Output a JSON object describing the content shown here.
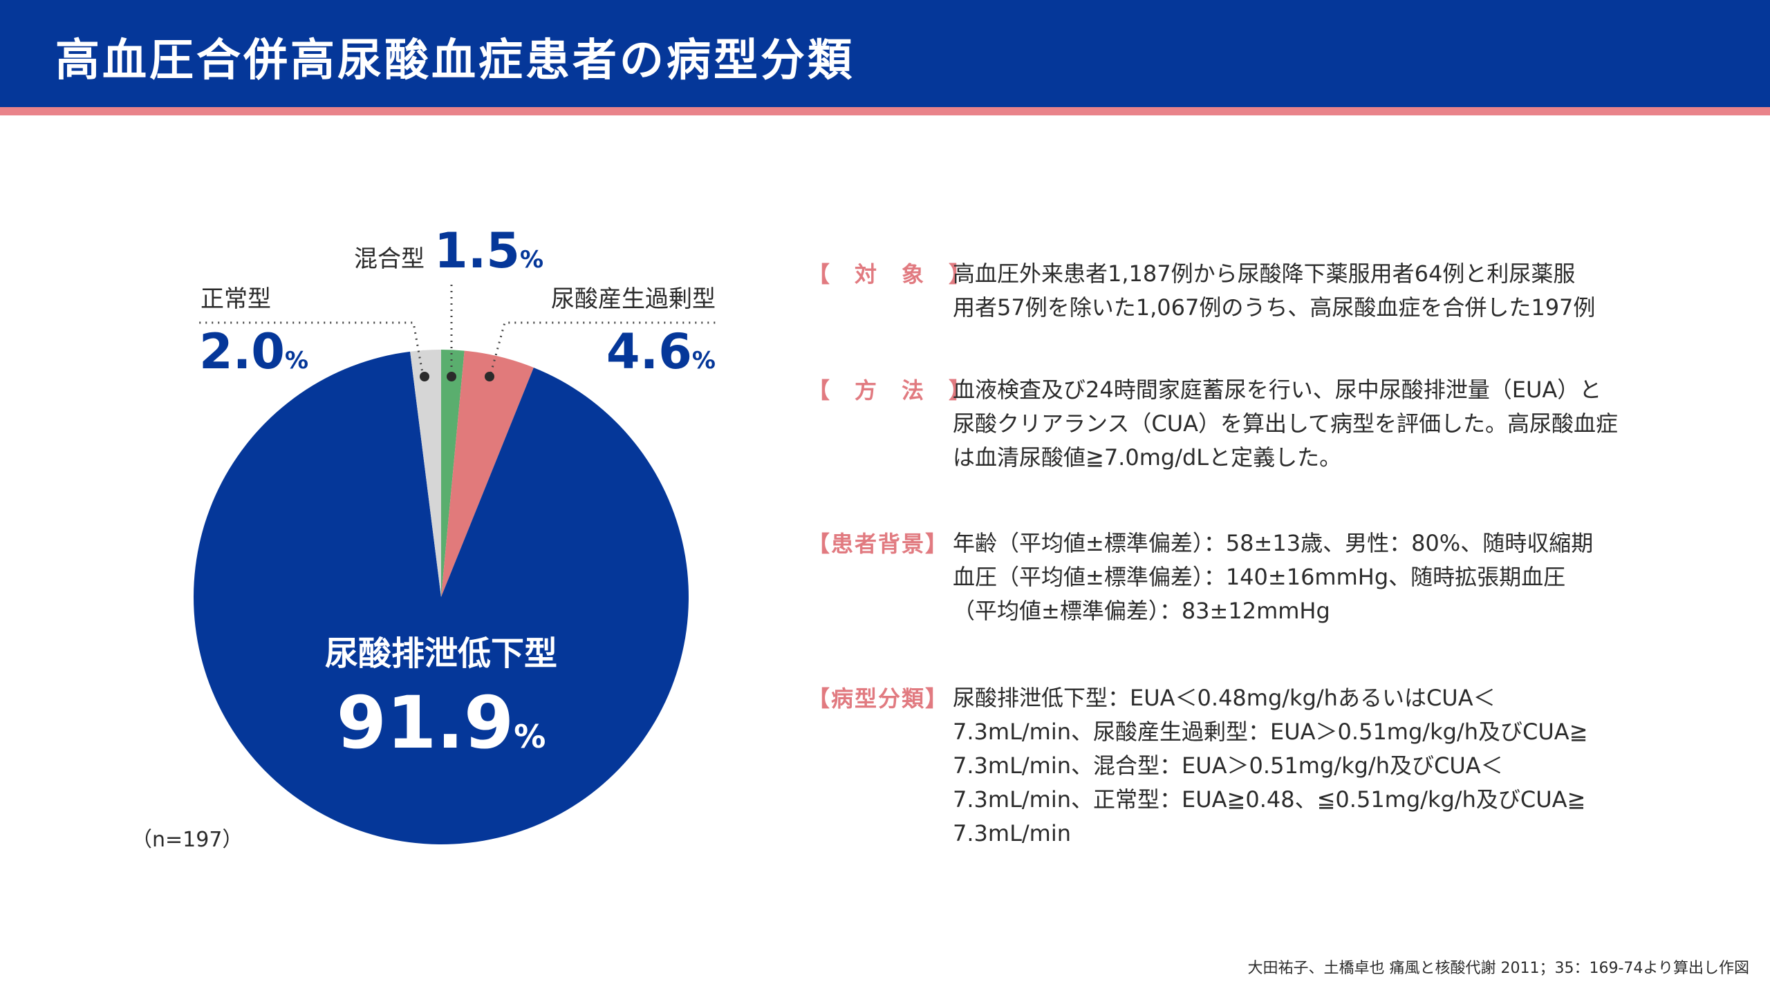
{
  "title": "高血圧合併高尿酸血症患者の病型分類",
  "chart_data": {
    "type": "pie",
    "slices": [
      {
        "label": "尿酸排泄低下型",
        "value": 91.9,
        "display": "91.9",
        "unit": "%",
        "color": "#053799"
      },
      {
        "label": "正常型",
        "value": 2.0,
        "display": "2.0",
        "unit": "%",
        "color": "#d6d6d6"
      },
      {
        "label": "混合型",
        "value": 1.5,
        "display": "1.5",
        "unit": "%",
        "color": "#5aae6e"
      },
      {
        "label": "尿酸産生過剰型",
        "value": 4.6,
        "display": "4.6",
        "unit": "%",
        "color": "#e17a7b"
      }
    ],
    "sample_size": "（n=197）"
  },
  "info": [
    {
      "heading": "【　対　象　】",
      "lines": [
        "高血圧外来患者1,187例から尿酸降下薬服用者64例と利尿薬服",
        "用者57例を除いた1,067例のうち、高尿酸血症を合併した197例"
      ]
    },
    {
      "heading": "【　方　法　】",
      "lines": [
        "血液検査及び24時間家庭蓄尿を行い、尿中尿酸排泄量（EUA）と",
        "尿酸クリアランス（CUA）を算出して病型を評価した。高尿酸血症",
        "は血清尿酸値≧7.0mg/dLと定義した。"
      ]
    },
    {
      "heading": "【患者背景】",
      "lines": [
        "年齢（平均値±標準偏差）：58±13歳、男性：80%、随時収縮期",
        "血圧（平均値±標準偏差）：140±16mmHg、随時拡張期血圧",
        "（平均値±標準偏差）：83±12mmHg"
      ]
    },
    {
      "heading": "【病型分類】",
      "lines": [
        "尿酸排泄低下型：EUA＜0.48mg/kg/hあるいはCUA＜",
        "7.3mL/min、尿酸産生過剰型：EUA＞0.51mg/kg/h及びCUA≧",
        "7.3mL/min、混合型：EUA＞0.51mg/kg/h及びCUA＜",
        "7.3mL/min、正常型：EUA≧0.48、≦0.51mg/kg/h及びCUA≧",
        "7.3mL/min"
      ]
    }
  ],
  "citation": "大田祐子、土橋卓也 痛風と核酸代謝 2011；35：169-74より算出し作図"
}
